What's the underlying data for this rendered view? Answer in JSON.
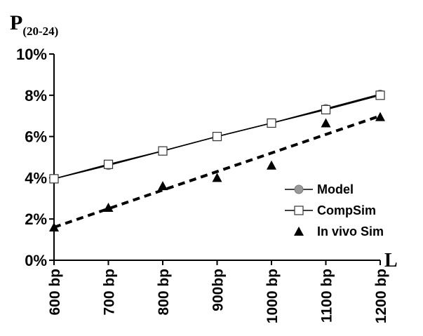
{
  "chart_data": {
    "type": "line",
    "ylabel_main": "P",
    "ylabel_sub": "(20-24)",
    "xlabel": "L",
    "categories": [
      "600 bp",
      "700 bp",
      "800 bp",
      "900bp",
      "1000 bp",
      "1100 bp",
      "1200 bp"
    ],
    "yticks": [
      "0%",
      "2%",
      "4%",
      "6%",
      "8%",
      "10%"
    ],
    "ylim": [
      0,
      10
    ],
    "grid": false,
    "legend_position": "right",
    "series": [
      {
        "name": "Model",
        "values": [
          3.95,
          4.6,
          5.3,
          6.0,
          6.65,
          7.35,
          8.05
        ],
        "marker": "circle",
        "color": "#999999",
        "line": "solid"
      },
      {
        "name": "CompSim",
        "values": [
          3.95,
          4.65,
          5.3,
          6.0,
          6.65,
          7.3,
          8.0
        ],
        "marker": "square",
        "color": "#ffffff",
        "line": "solid"
      },
      {
        "name": "In vivo Sim",
        "values": [
          1.6,
          2.55,
          3.6,
          4.0,
          4.6,
          6.65,
          6.95
        ],
        "marker": "triangle",
        "color": "#000000",
        "line": "none"
      }
    ],
    "trendline": {
      "start": 1.6,
      "end": 7.0,
      "style": "dashed"
    }
  }
}
